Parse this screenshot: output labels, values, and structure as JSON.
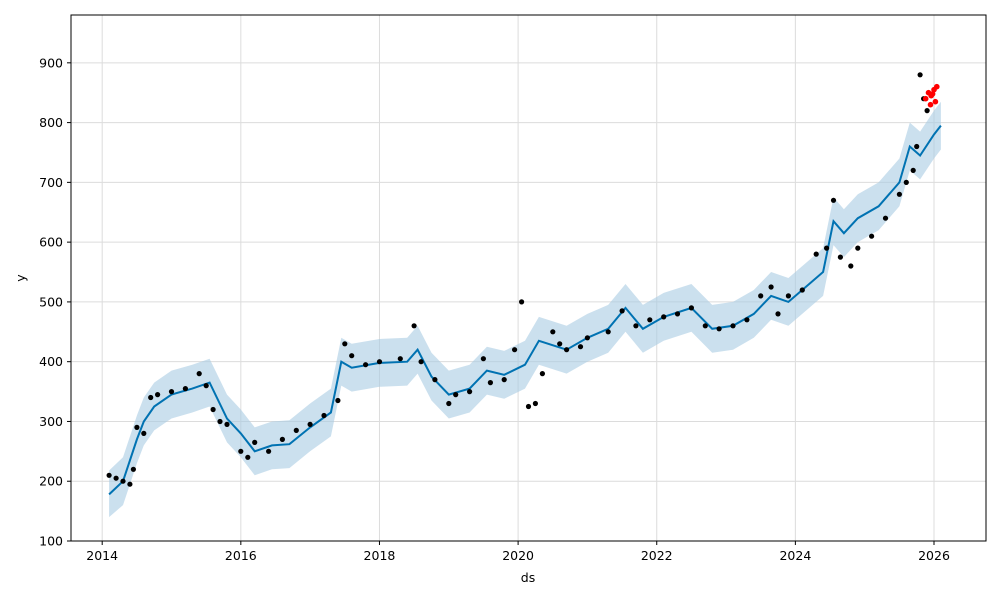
{
  "chart_data": {
    "type": "line",
    "title": "",
    "xlabel": "ds",
    "ylabel": "y",
    "xlim": [
      2013.55,
      2026.75
    ],
    "ylim": [
      100,
      980
    ],
    "xticks": [
      2014,
      2016,
      2018,
      2020,
      2022,
      2024,
      2026
    ],
    "yticks": [
      100,
      200,
      300,
      400,
      500,
      600,
      700,
      800,
      900
    ],
    "xtick_labels": [
      "2014",
      "2016",
      "2018",
      "2020",
      "2022",
      "2024",
      "2026"
    ],
    "ytick_labels": [
      "100",
      "200",
      "300",
      "400",
      "500",
      "600",
      "700",
      "800",
      "900"
    ],
    "grid": true,
    "colors": {
      "forecast_line": "#0072B2",
      "uncertainty_band": "#A9CCE3",
      "observed_points": "#000000",
      "highlight_points": "#FF0000"
    },
    "series": [
      {
        "kind": "forecast",
        "x": [
          2014.1,
          2014.3,
          2014.5,
          2014.6,
          2014.75,
          2015.0,
          2015.3,
          2015.55,
          2015.8,
          2016.0,
          2016.2,
          2016.45,
          2016.7,
          2017.0,
          2017.3,
          2017.45,
          2017.6,
          2018.0,
          2018.4,
          2018.55,
          2018.75,
          2019.0,
          2019.3,
          2019.55,
          2019.8,
          2020.1,
          2020.3,
          2020.7,
          2021.0,
          2021.3,
          2021.55,
          2021.8,
          2022.1,
          2022.5,
          2022.8,
          2023.1,
          2023.4,
          2023.65,
          2023.9,
          2024.2,
          2024.4,
          2024.55,
          2024.7,
          2024.9,
          2025.2,
          2025.5,
          2025.65,
          2025.8,
          2026.0,
          2026.1
        ],
        "y": [
          178,
          200,
          270,
          300,
          325,
          345,
          355,
          365,
          305,
          280,
          250,
          260,
          262,
          290,
          315,
          400,
          390,
          398,
          400,
          420,
          375,
          345,
          355,
          385,
          378,
          395,
          435,
          420,
          440,
          455,
          490,
          455,
          475,
          490,
          455,
          460,
          480,
          510,
          500,
          530,
          550,
          635,
          615,
          640,
          660,
          700,
          760,
          745,
          780,
          795
        ],
        "lower": [
          140,
          160,
          230,
          260,
          285,
          305,
          315,
          325,
          265,
          240,
          210,
          220,
          222,
          250,
          275,
          360,
          350,
          358,
          360,
          380,
          335,
          305,
          315,
          345,
          338,
          355,
          395,
          380,
          400,
          415,
          450,
          415,
          435,
          450,
          415,
          420,
          440,
          470,
          460,
          490,
          510,
          595,
          575,
          600,
          620,
          660,
          720,
          705,
          740,
          755
        ],
        "upper": [
          218,
          240,
          310,
          340,
          365,
          385,
          395,
          405,
          345,
          320,
          290,
          300,
          302,
          330,
          355,
          440,
          430,
          438,
          440,
          460,
          415,
          385,
          395,
          425,
          418,
          435,
          475,
          460,
          480,
          495,
          530,
          495,
          515,
          530,
          495,
          500,
          520,
          550,
          540,
          570,
          590,
          675,
          655,
          680,
          700,
          740,
          800,
          785,
          820,
          835
        ]
      },
      {
        "kind": "observed",
        "x": [
          2014.1,
          2014.2,
          2014.3,
          2014.4,
          2014.45,
          2014.5,
          2014.6,
          2014.7,
          2014.8,
          2015.0,
          2015.2,
          2015.4,
          2015.5,
          2015.6,
          2015.7,
          2015.8,
          2016.0,
          2016.1,
          2016.2,
          2016.4,
          2016.6,
          2016.8,
          2017.0,
          2017.2,
          2017.4,
          2017.5,
          2017.6,
          2017.8,
          2018.0,
          2018.3,
          2018.5,
          2018.6,
          2018.8,
          2019.0,
          2019.1,
          2019.3,
          2019.5,
          2019.6,
          2019.8,
          2019.95,
          2020.05,
          2020.15,
          2020.25,
          2020.35,
          2020.5,
          2020.6,
          2020.7,
          2020.9,
          2021.0,
          2021.3,
          2021.5,
          2021.7,
          2021.9,
          2022.1,
          2022.3,
          2022.5,
          2022.7,
          2022.9,
          2023.1,
          2023.3,
          2023.5,
          2023.65,
          2023.75,
          2023.9,
          2024.1,
          2024.3,
          2024.45,
          2024.55,
          2024.65,
          2024.8,
          2024.9,
          2025.1,
          2025.3,
          2025.5,
          2025.6,
          2025.7,
          2025.75,
          2025.8,
          2025.85,
          2025.9
        ],
        "y": [
          210,
          205,
          200,
          195,
          220,
          290,
          280,
          340,
          345,
          350,
          355,
          380,
          360,
          320,
          300,
          295,
          250,
          240,
          265,
          250,
          270,
          285,
          295,
          310,
          335,
          430,
          410,
          395,
          400,
          405,
          460,
          400,
          370,
          330,
          345,
          350,
          405,
          365,
          370,
          420,
          500,
          325,
          330,
          380,
          450,
          430,
          420,
          425,
          440,
          450,
          485,
          460,
          470,
          475,
          480,
          490,
          460,
          455,
          460,
          470,
          510,
          525,
          480,
          510,
          520,
          580,
          590,
          670,
          575,
          560,
          590,
          610,
          640,
          680,
          700,
          720,
          760,
          880,
          840,
          820
        ]
      },
      {
        "kind": "highlight",
        "x": [
          2025.88,
          2025.92,
          2025.96,
          2026.0,
          2026.04,
          2026.02,
          2025.95,
          2025.98
        ],
        "y": [
          840,
          850,
          845,
          855,
          860,
          835,
          830,
          848
        ]
      }
    ]
  }
}
